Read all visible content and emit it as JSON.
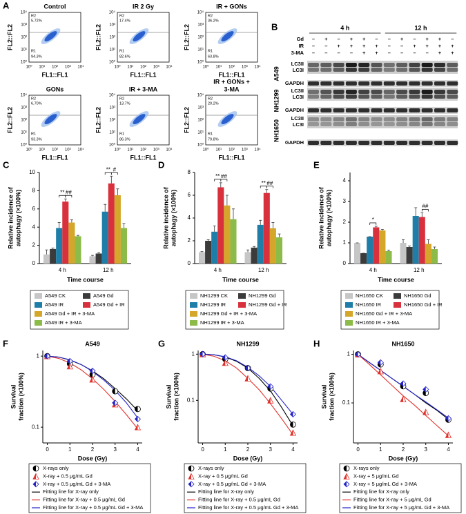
{
  "flow_cytometry": {
    "panel": "A",
    "x_label": "FL1::FL1",
    "y_label": "FL2::FL2",
    "ticks": [
      "10⁰",
      "10¹",
      "10²",
      "10³",
      "10⁴"
    ],
    "plots": [
      {
        "title": [
          "Control"
        ],
        "r2": "R2",
        "r2_value": "5.72%",
        "r1": "R1",
        "r1_value": "94.3%"
      },
      {
        "title": [
          "IR 2 Gy"
        ],
        "r2": "R2",
        "r2_value": "17.4%",
        "r1": "R1",
        "r1_value": "82.6%"
      },
      {
        "title": [
          "IR + GONs"
        ],
        "r2": "R2",
        "r2_value": "36.2%",
        "r1": "R1",
        "r1_value": "63.8%"
      },
      {
        "title": [
          "GONs"
        ],
        "r2": "R2",
        "r2_value": "6.70%",
        "r1": "R1",
        "r1_value": "93.3%"
      },
      {
        "title": [
          "IR + 3-MA"
        ],
        "r2": "R2",
        "r2_value": "13.7%",
        "r1": "R1",
        "r1_value": "86.3%"
      },
      {
        "title": [
          "IR + GONs +",
          "3-MA"
        ],
        "r2": "R2",
        "r2_value": "20.2%",
        "r1": "R1",
        "r1_value": "79.8%"
      }
    ]
  },
  "western_blot": {
    "panel": "B",
    "time_labels": [
      "4 h",
      "12 h"
    ],
    "treatments": [
      {
        "name": "Gd",
        "signs": [
          "–",
          "+",
          "–",
          "+",
          "+",
          "–",
          "–",
          "+",
          "–",
          "+",
          "+",
          "–"
        ]
      },
      {
        "name": "IR",
        "signs": [
          "–",
          "–",
          "+",
          "+",
          "+",
          "+",
          "–",
          "–",
          "+",
          "+",
          "+",
          "+"
        ]
      },
      {
        "name": "3-MA",
        "signs": [
          "–",
          "–",
          "–",
          "–",
          "+",
          "+",
          "–",
          "–",
          "–",
          "–",
          "+",
          "+"
        ]
      }
    ],
    "cell_lines": [
      {
        "name": "A549",
        "bands": [
          "LC3II",
          "LC3I",
          "GAPDH"
        ]
      },
      {
        "name": "NH1299",
        "bands": [
          "LC3II",
          "LC3I",
          "GAPDH"
        ]
      },
      {
        "name": "NH1650",
        "bands": [
          "LC3II",
          "LC3I",
          "GAPDH"
        ]
      }
    ]
  },
  "chart_data": [
    {
      "type": "bar",
      "panel": "C",
      "y_label": [
        "Relative incidence of",
        "autophagy (×100%)"
      ],
      "x_label": "Time course",
      "categories": [
        "4 h",
        "12 h"
      ],
      "ylim": [
        0,
        10
      ],
      "yticks": [
        0,
        2,
        4,
        6,
        8,
        10
      ],
      "series": [
        {
          "name": "A549 CK",
          "color": "#c6c6c6",
          "values": [
            1.0,
            0.8
          ],
          "errors": [
            0.5,
            0.1
          ]
        },
        {
          "name": "A549 Gd",
          "color": "#3b3b3b",
          "values": [
            1.6,
            1.1
          ],
          "errors": [
            0.1,
            0.1
          ]
        },
        {
          "name": "A549 IR",
          "color": "#1f7ea8",
          "values": [
            3.9,
            5.7
          ],
          "errors": [
            0.6,
            0.8
          ]
        },
        {
          "name": "A549 Gd + IR",
          "color": "#d8313d",
          "values": [
            6.8,
            8.8
          ],
          "errors": [
            0.3,
            0.8
          ]
        },
        {
          "name": "A549 Gd + IR + 3-MA",
          "color": "#d4a62a",
          "values": [
            4.5,
            7.5
          ],
          "errors": [
            0.3,
            0.7
          ]
        },
        {
          "name": "A549 IR + 3-MA",
          "color": "#8cbb4a",
          "values": [
            3.0,
            3.9
          ],
          "errors": [
            0.1,
            0.5
          ]
        }
      ],
      "annotations": [
        "**",
        "##",
        "**",
        "#"
      ]
    },
    {
      "type": "bar",
      "panel": "D",
      "y_label": [
        "Relative incidence of",
        "autophagy (×100%)"
      ],
      "x_label": "Time course",
      "categories": [
        "4 h",
        "12 h"
      ],
      "ylim": [
        0,
        8
      ],
      "yticks": [
        0,
        2,
        4,
        6,
        8
      ],
      "series": [
        {
          "name": "NH1299 CK",
          "color": "#c6c6c6",
          "values": [
            1.0,
            1.0
          ],
          "errors": [
            0.05,
            0.2
          ]
        },
        {
          "name": "NH1299 Gd",
          "color": "#3b3b3b",
          "values": [
            2.0,
            1.4
          ],
          "errors": [
            0.1,
            0.1
          ]
        },
        {
          "name": "NH1299 IR",
          "color": "#1f7ea8",
          "values": [
            2.8,
            3.4
          ],
          "errors": [
            0.5,
            0.4
          ]
        },
        {
          "name": "NH1299 Gd + IR",
          "color": "#d8313d",
          "values": [
            6.7,
            6.2
          ],
          "errors": [
            0.4,
            0.3
          ]
        },
        {
          "name": "NH1299 Gd + IR + 3-MA",
          "color": "#d4a62a",
          "values": [
            5.1,
            3.1
          ],
          "errors": [
            0.9,
            0.5
          ]
        },
        {
          "name": "NH1299 IR + 3-MA",
          "color": "#8cbb4a",
          "values": [
            3.9,
            2.3
          ],
          "errors": [
            0.9,
            0.3
          ]
        }
      ],
      "annotations": [
        "**",
        "##",
        "**",
        "##"
      ]
    },
    {
      "type": "bar",
      "panel": "E",
      "y_label": [
        "Relative incidence of",
        "autophagy (×100%)"
      ],
      "x_label": "Time course",
      "categories": [
        "4 h",
        "12 h"
      ],
      "ylim": [
        0,
        4.4
      ],
      "yticks": [
        0,
        1,
        2,
        3,
        4
      ],
      "series": [
        {
          "name": "NH1650 CK",
          "color": "#c6c6c6",
          "values": [
            1.0,
            1.0
          ],
          "errors": [
            0,
            0.15
          ]
        },
        {
          "name": "NH1650 Gd",
          "color": "#3b3b3b",
          "values": [
            0.5,
            0.8
          ],
          "errors": [
            0,
            0.05
          ]
        },
        {
          "name": "NH1650 IR",
          "color": "#1f7ea8",
          "values": [
            1.3,
            2.3
          ],
          "errors": [
            0,
            0.4
          ]
        },
        {
          "name": "NH1650 Gd + IR",
          "color": "#d8313d",
          "values": [
            1.75,
            2.25
          ],
          "errors": [
            0.05,
            0.2
          ]
        },
        {
          "name": "NH1650 Gd + IR + 3-MA",
          "color": "#d4a62a",
          "values": [
            1.6,
            0.95
          ],
          "errors": [
            0.05,
            0.2
          ]
        },
        {
          "name": "NH1650 IR + 3-MA",
          "color": "#8cbb4a",
          "values": [
            0.6,
            0.7
          ],
          "errors": [
            0.05,
            0.1
          ]
        }
      ],
      "annotations": [
        "*",
        "##"
      ]
    },
    {
      "type": "line",
      "panel": "F",
      "title": "A549",
      "y_label": [
        "Survival",
        "fraction (×100%)"
      ],
      "x_label": "Dose (Gy)",
      "log_y": true,
      "xlim": [
        -0.2,
        4.2
      ],
      "xticks": [
        0,
        1,
        2,
        3,
        4
      ],
      "ylim": [
        0.06,
        1.2
      ],
      "yticks": [
        0.1,
        1
      ],
      "x": [
        0,
        0.5,
        1,
        1.5,
        2,
        2.5,
        3,
        3.5,
        4
      ],
      "series": [
        {
          "name": "X-rays only",
          "style": "marker",
          "marker": "circle",
          "color": "#000000",
          "values": [
            1,
            null,
            0.78,
            null,
            0.55,
            null,
            0.32,
            null,
            0.18
          ]
        },
        {
          "name": "X-ray + 0.5 μg/mL Gd",
          "style": "marker",
          "marker": "triangle",
          "color": "#e0302a",
          "values": [
            1,
            null,
            0.72,
            null,
            0.47,
            null,
            0.21,
            null,
            0.1
          ]
        },
        {
          "name": "X-ray + 0.5 μg/mL Gd + 3-MA",
          "style": "marker",
          "marker": "diamond",
          "color": "#2323c8",
          "values": [
            1,
            null,
            0.85,
            null,
            0.62,
            null,
            0.22,
            null,
            0.13
          ]
        },
        {
          "name": "Fitting line for X-ray only",
          "style": "line",
          "color": "#000000",
          "values": [
            1,
            0.97,
            0.88,
            0.76,
            0.62,
            0.48,
            0.35,
            0.25,
            0.17
          ]
        },
        {
          "name": "Fitting line for X-ray + 0.5 μg/mL Gd",
          "style": "line",
          "color": "#e0302a",
          "values": [
            1,
            0.93,
            0.8,
            0.64,
            0.48,
            0.34,
            0.23,
            0.15,
            0.095
          ]
        },
        {
          "name": "Fitting line for X-ray + 0.5 μg/mL Gd + 3-MA",
          "style": "line",
          "color": "#2323c8",
          "values": [
            1,
            0.97,
            0.89,
            0.76,
            0.61,
            0.46,
            0.33,
            0.22,
            0.135
          ]
        }
      ]
    },
    {
      "type": "line",
      "panel": "G",
      "title": "NH1299",
      "y_label": [
        "Survival",
        "fraction (×100%)"
      ],
      "x_label": "Dose (Gy)",
      "log_y": true,
      "xlim": [
        -0.2,
        4.2
      ],
      "xticks": [
        0,
        1,
        2,
        3,
        4
      ],
      "ylim": [
        0.012,
        1.2
      ],
      "yticks": [
        0.1,
        1
      ],
      "x": [
        0,
        0.5,
        1,
        1.5,
        2,
        2.5,
        3,
        3.5,
        4
      ],
      "series": [
        {
          "name": "X-rays only",
          "style": "marker",
          "marker": "circle",
          "color": "#000000",
          "values": [
            1,
            null,
            0.78,
            null,
            0.5,
            null,
            0.18,
            null,
            0.03
          ]
        },
        {
          "name": "X-ray + 0.5 μg/mL Gd",
          "style": "marker",
          "marker": "triangle",
          "color": "#e0302a",
          "values": [
            1,
            null,
            0.65,
            null,
            0.3,
            null,
            0.1,
            null,
            0.02
          ]
        },
        {
          "name": "X-ray + 0.5 μg/mL Gd + 3-MA",
          "style": "marker",
          "marker": "diamond",
          "color": "#2323c8",
          "values": [
            1,
            null,
            0.85,
            null,
            0.5,
            null,
            0.2,
            null,
            0.05
          ]
        },
        {
          "name": "Fitting line for X-ray only",
          "style": "line",
          "color": "#000000",
          "values": [
            1,
            0.97,
            0.87,
            0.7,
            0.5,
            0.3,
            0.16,
            0.07,
            0.028
          ]
        },
        {
          "name": "Fitting line for X-ray + 0.5 μg/mL Gd",
          "style": "line",
          "color": "#e0302a",
          "values": [
            1,
            0.9,
            0.72,
            0.5,
            0.3,
            0.17,
            0.085,
            0.04,
            0.018
          ]
        },
        {
          "name": "Fitting line for X-ray + 0.5 μg/mL Gd + 3-MA",
          "style": "line",
          "color": "#2323c8",
          "values": [
            1,
            0.97,
            0.88,
            0.72,
            0.52,
            0.34,
            0.2,
            0.1,
            0.05
          ]
        }
      ]
    },
    {
      "type": "line",
      "panel": "H",
      "title": "NH1650",
      "y_label": [
        "Survival",
        "fraction (×100%)"
      ],
      "x_label": "Dose (Gy)",
      "log_y": true,
      "xlim": [
        -0.2,
        4.2
      ],
      "xticks": [
        0,
        1,
        2,
        3,
        4
      ],
      "ylim": [
        0.015,
        1.2
      ],
      "yticks": [
        0.1,
        1
      ],
      "x": [
        0,
        0.5,
        1,
        1.5,
        2,
        2.5,
        3,
        3.5,
        4
      ],
      "series": [
        {
          "name": "X-rays only",
          "style": "marker",
          "marker": "circle",
          "color": "#000000",
          "values": [
            1,
            null,
            0.62,
            null,
            0.22,
            null,
            0.16,
            null,
            0.045
          ]
        },
        {
          "name": "X-ray + 5 μg/mL Gd",
          "style": "marker",
          "marker": "triangle",
          "color": "#e0302a",
          "values": [
            1,
            null,
            0.45,
            null,
            0.12,
            null,
            0.065,
            null,
            0.022
          ]
        },
        {
          "name": "X-ray + 5 μg/mL Gd + 3-MA",
          "style": "marker",
          "marker": "diamond",
          "color": "#2323c8",
          "values": [
            1,
            null,
            0.68,
            null,
            0.25,
            null,
            0.19,
            null,
            0.048
          ]
        },
        {
          "name": "Fitting line for X-ray only",
          "style": "line",
          "color": "#000000",
          "values": [
            1,
            0.68,
            0.47,
            0.32,
            0.22,
            0.15,
            0.1,
            0.07,
            0.046
          ]
        },
        {
          "name": "Fitting line for X-ray + 5 μg/mL Gd",
          "style": "line",
          "color": "#e0302a",
          "values": [
            1,
            0.62,
            0.38,
            0.23,
            0.14,
            0.09,
            0.055,
            0.034,
            0.021
          ]
        },
        {
          "name": "Fitting line for X-ray + 5 μg/mL Gd + 3-MA",
          "style": "line",
          "color": "#2323c8",
          "values": [
            1,
            0.68,
            0.47,
            0.32,
            0.22,
            0.15,
            0.105,
            0.072,
            0.049
          ]
        }
      ]
    }
  ]
}
